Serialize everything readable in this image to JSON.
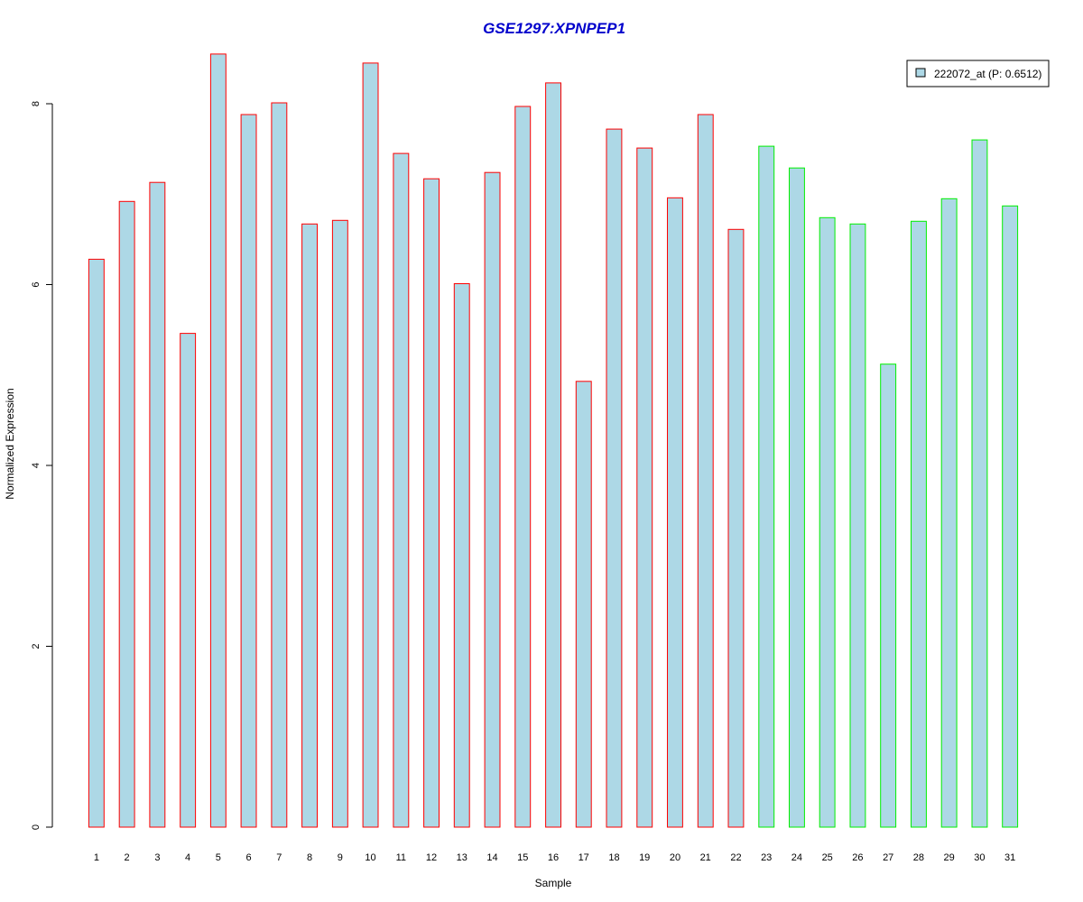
{
  "chart_data": {
    "type": "bar",
    "title": "GSE1297:XPNPEP1",
    "xlabel": "Sample",
    "ylabel": "Normalized Expression",
    "categories": [
      "1",
      "2",
      "3",
      "4",
      "5",
      "6",
      "7",
      "8",
      "9",
      "10",
      "11",
      "12",
      "13",
      "14",
      "15",
      "16",
      "17",
      "18",
      "19",
      "20",
      "21",
      "22",
      "23",
      "24",
      "25",
      "26",
      "27",
      "28",
      "29",
      "30",
      "31"
    ],
    "series": [
      {
        "name": "222072_at (P: 0.6512)",
        "values": [
          6.28,
          6.92,
          7.13,
          5.46,
          8.55,
          7.88,
          8.01,
          6.67,
          6.71,
          8.45,
          7.45,
          7.17,
          6.01,
          7.24,
          7.97,
          8.23,
          4.93,
          7.72,
          7.51,
          6.96,
          7.88,
          6.61,
          7.53,
          7.29,
          6.74,
          6.67,
          5.12,
          6.7,
          6.95,
          7.6,
          6.87
        ]
      }
    ],
    "groups": [
      {
        "samples": "1-22",
        "border_color": "#ff0000"
      },
      {
        "samples": "23-31",
        "border_color": "#00ee00"
      }
    ],
    "fill_color": "#add8e6",
    "ylim": [
      0,
      8.7
    ],
    "yticks": [
      0,
      2,
      4,
      6,
      8
    ],
    "grid": false,
    "legend_position": "top-right"
  }
}
